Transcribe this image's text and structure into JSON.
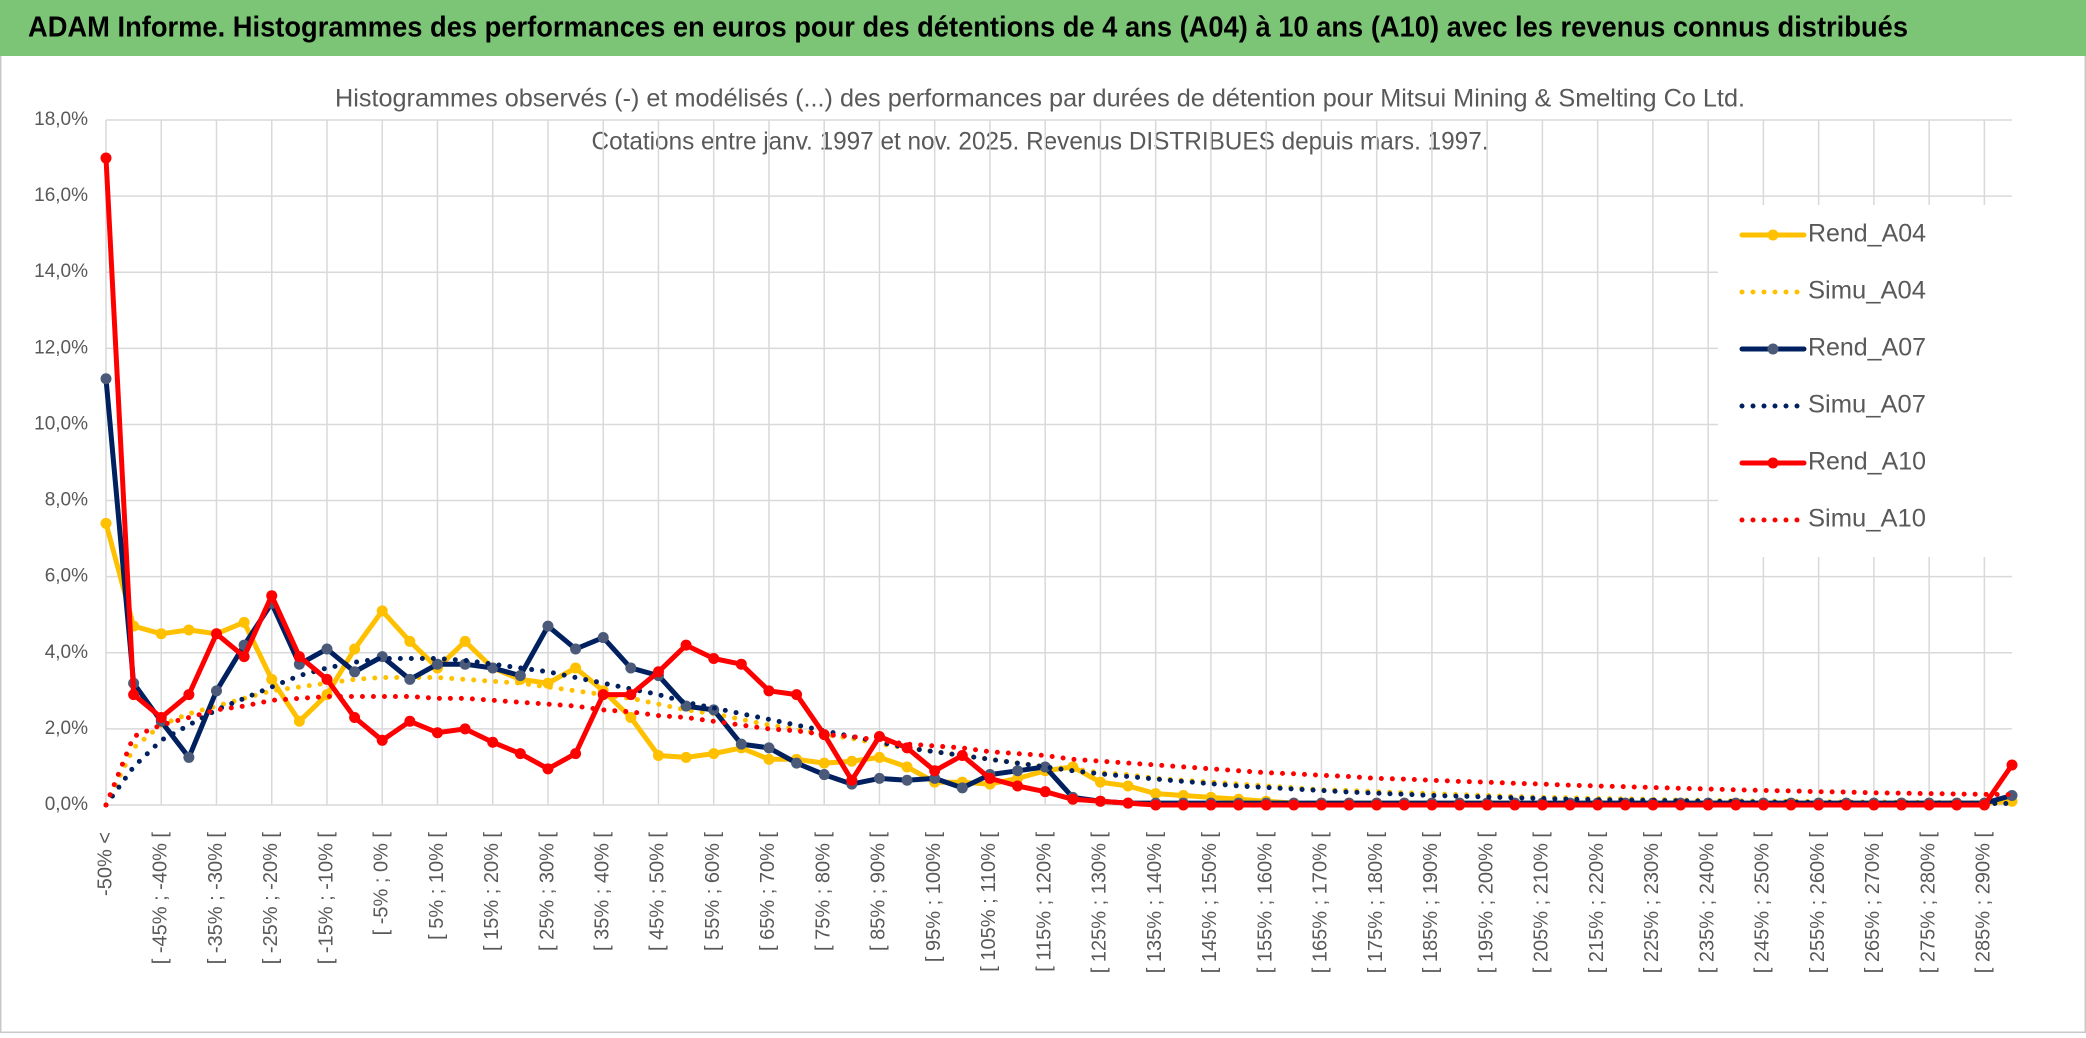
{
  "header": {
    "title": "ADAM Informe. Histogrammes des performances en euros pour des détentions de 4 ans (A04) à 10 ans (A10) avec les revenus connus distribués"
  },
  "chart_data": {
    "type": "line",
    "title": "Histogrammes observés (-) et modélisés (...) des performances par durées de détention pour Mitsui Mining & Smelting Co Ltd.",
    "subtitle": "Cotations entre janv. 1997 et nov. 2025. Revenus DISTRIBUES depuis mars. 1997.",
    "categories": [
      "-50% <",
      null,
      "[ -45% ; -40% [",
      null,
      "[ -35% ; -30% [",
      null,
      "[ -25% ; -20% [",
      null,
      "[ -15% ; -10% [",
      null,
      "[ -5% ; 0% [",
      null,
      "[ 5% ; 10% [",
      null,
      "[ 15% ; 20% [",
      null,
      "[ 25% ; 30% [",
      null,
      "[ 35% ; 40% [",
      null,
      "[ 45% ; 50% [",
      null,
      "[ 55% ; 60% [",
      null,
      "[ 65% ; 70% [",
      null,
      "[ 75% ; 80% [",
      null,
      "[ 85% ; 90% [",
      null,
      "[ 95% ; 100% [",
      null,
      "[ 105% ; 110% [",
      null,
      "[ 115% ; 120% [",
      null,
      "[ 125% ; 130% [",
      null,
      "[ 135% ; 140% [",
      null,
      "[ 145% ; 150% [",
      null,
      "[ 155% ; 160% [",
      null,
      "[ 165% ; 170% [",
      null,
      "[ 175% ; 180% [",
      null,
      "[ 185% ; 190% [",
      null,
      "[ 195% ; 200% [",
      null,
      "[ 205% ; 210% [",
      null,
      "[ 215% ; 220% [",
      null,
      "[ 225% ; 230% [",
      null,
      "[ 235% ; 240% [",
      null,
      "[ 245% ; 250% [",
      null,
      "[ 255% ; 260% [",
      null,
      "[ 265% ; 270% [",
      null,
      "[ 275% ; 280% [",
      null,
      "[ 285% ; 290% [",
      null
    ],
    "series": [
      {
        "name": "Rend_A04",
        "color": "#FFC000",
        "marker_color": "#FFC000",
        "line_style": "solid",
        "values": [
          7.4,
          4.7,
          4.5,
          4.6,
          4.5,
          4.8,
          3.3,
          2.2,
          2.9,
          4.1,
          5.1,
          4.3,
          3.6,
          4.3,
          3.6,
          3.3,
          3.2,
          3.6,
          3.0,
          2.3,
          1.3,
          1.25,
          1.35,
          1.5,
          1.2,
          1.2,
          1.1,
          1.15,
          1.25,
          1.0,
          0.6,
          0.6,
          0.55,
          0.7,
          0.9,
          1.0,
          0.6,
          0.5,
          0.3,
          0.25,
          0.2,
          0.15,
          0.1,
          0.05,
          0.05,
          0.05,
          0.05,
          0.05,
          0.05,
          0.05,
          0.05,
          0.05,
          0.05,
          0.05,
          0.05,
          0.05,
          0.05,
          0.05,
          0.05,
          0.05,
          0.05,
          0.05,
          0.05,
          0.05,
          0.05,
          0.05,
          0.05,
          0.05,
          0.05,
          0.1
        ]
      },
      {
        "name": "Simu_A04",
        "color": "#FFC000",
        "line_style": "dotted",
        "values": [
          0.0,
          1.5,
          2.1,
          2.4,
          2.6,
          2.8,
          3.0,
          3.1,
          3.2,
          3.3,
          3.35,
          3.35,
          3.35,
          3.3,
          3.25,
          3.2,
          3.1,
          3.0,
          2.9,
          2.8,
          2.65,
          2.5,
          2.4,
          2.25,
          2.1,
          2.0,
          1.85,
          1.75,
          1.6,
          1.5,
          1.4,
          1.3,
          1.2,
          1.1,
          1.0,
          0.95,
          0.85,
          0.8,
          0.7,
          0.65,
          0.6,
          0.55,
          0.5,
          0.45,
          0.4,
          0.38,
          0.35,
          0.32,
          0.3,
          0.27,
          0.25,
          0.22,
          0.2,
          0.19,
          0.17,
          0.16,
          0.15,
          0.13,
          0.12,
          0.11,
          0.1,
          0.1,
          0.09,
          0.08,
          0.08,
          0.07,
          0.07,
          0.06,
          0.06,
          0.05
        ]
      },
      {
        "name": "Rend_A07",
        "color": "#002060",
        "marker_color": "#4A5A78",
        "line_style": "solid",
        "values": [
          11.2,
          3.2,
          2.2,
          1.25,
          3.0,
          4.2,
          5.3,
          3.7,
          4.1,
          3.5,
          3.9,
          3.3,
          3.7,
          3.7,
          3.6,
          3.4,
          4.7,
          4.1,
          4.4,
          3.6,
          3.4,
          2.6,
          2.5,
          1.6,
          1.5,
          1.1,
          0.8,
          0.55,
          0.7,
          0.65,
          0.7,
          0.45,
          0.8,
          0.9,
          1.0,
          0.2,
          0.1,
          0.05,
          0.05,
          0.05,
          0.05,
          0.05,
          0.05,
          0.05,
          0.05,
          0.05,
          0.05,
          0.05,
          0.05,
          0.05,
          0.05,
          0.05,
          0.05,
          0.05,
          0.05,
          0.05,
          0.05,
          0.05,
          0.05,
          0.05,
          0.05,
          0.05,
          0.05,
          0.05,
          0.05,
          0.05,
          0.05,
          0.05,
          0.05,
          0.25
        ]
      },
      {
        "name": "Simu_A07",
        "color": "#002060",
        "line_style": "dotted",
        "values": [
          0.0,
          1.0,
          1.7,
          2.1,
          2.5,
          2.8,
          3.1,
          3.4,
          3.6,
          3.75,
          3.85,
          3.85,
          3.85,
          3.8,
          3.7,
          3.6,
          3.5,
          3.35,
          3.2,
          3.05,
          2.9,
          2.7,
          2.55,
          2.4,
          2.25,
          2.1,
          1.95,
          1.8,
          1.65,
          1.5,
          1.4,
          1.3,
          1.2,
          1.1,
          1.0,
          0.9,
          0.82,
          0.75,
          0.68,
          0.62,
          0.56,
          0.5,
          0.46,
          0.42,
          0.38,
          0.34,
          0.31,
          0.28,
          0.25,
          0.23,
          0.21,
          0.19,
          0.17,
          0.15,
          0.14,
          0.13,
          0.12,
          0.11,
          0.1,
          0.09,
          0.08,
          0.07,
          0.07,
          0.06,
          0.06,
          0.05,
          0.05,
          0.04,
          0.04,
          0.04
        ]
      },
      {
        "name": "Rend_A10",
        "color": "#FF0000",
        "marker_color": "#FF0000",
        "line_style": "solid",
        "values": [
          17.0,
          2.9,
          2.3,
          2.9,
          4.5,
          3.9,
          5.5,
          3.9,
          3.3,
          2.3,
          1.7,
          2.2,
          1.9,
          2.0,
          1.65,
          1.35,
          0.95,
          1.35,
          2.9,
          2.9,
          3.5,
          4.2,
          3.85,
          3.7,
          3.0,
          2.9,
          1.85,
          0.65,
          1.8,
          1.5,
          0.9,
          1.3,
          0.7,
          0.5,
          0.35,
          0.15,
          0.1,
          0.05,
          0.0,
          0.0,
          0.0,
          0.0,
          0.0,
          0.0,
          0.0,
          0.0,
          0.0,
          0.0,
          0.0,
          0.0,
          0.0,
          0.0,
          0.0,
          0.0,
          0.0,
          0.0,
          0.0,
          0.0,
          0.0,
          0.0,
          0.0,
          0.0,
          0.0,
          0.0,
          0.0,
          0.0,
          0.0,
          0.0,
          0.0,
          1.05
        ]
      },
      {
        "name": "Simu_A10",
        "color": "#FF0000",
        "line_style": "dotted",
        "values": [
          0.0,
          1.8,
          2.1,
          2.3,
          2.5,
          2.6,
          2.75,
          2.8,
          2.85,
          2.85,
          2.85,
          2.85,
          2.8,
          2.8,
          2.75,
          2.7,
          2.65,
          2.6,
          2.5,
          2.45,
          2.35,
          2.3,
          2.2,
          2.1,
          2.0,
          1.95,
          1.85,
          1.8,
          1.7,
          1.6,
          1.55,
          1.5,
          1.4,
          1.35,
          1.3,
          1.2,
          1.15,
          1.1,
          1.05,
          1.0,
          0.95,
          0.9,
          0.85,
          0.82,
          0.78,
          0.75,
          0.7,
          0.68,
          0.65,
          0.62,
          0.6,
          0.57,
          0.55,
          0.52,
          0.5,
          0.48,
          0.46,
          0.44,
          0.42,
          0.4,
          0.38,
          0.37,
          0.35,
          0.34,
          0.32,
          0.31,
          0.3,
          0.29,
          0.28,
          0.27
        ]
      }
    ],
    "ylim": [
      0,
      18
    ],
    "yticks": [
      {
        "value": 0,
        "label": "0,0%"
      },
      {
        "value": 2,
        "label": "2,0%"
      },
      {
        "value": 4,
        "label": "4,0%"
      },
      {
        "value": 6,
        "label": "6,0%"
      },
      {
        "value": 8,
        "label": "8,0%"
      },
      {
        "value": 10,
        "label": "10,0%"
      },
      {
        "value": 12,
        "label": "12,0%"
      },
      {
        "value": 14,
        "label": "14,0%"
      },
      {
        "value": 16,
        "label": "16,0%"
      },
      {
        "value": 18,
        "label": "18,0%"
      }
    ],
    "grid": true,
    "legend": "right"
  }
}
